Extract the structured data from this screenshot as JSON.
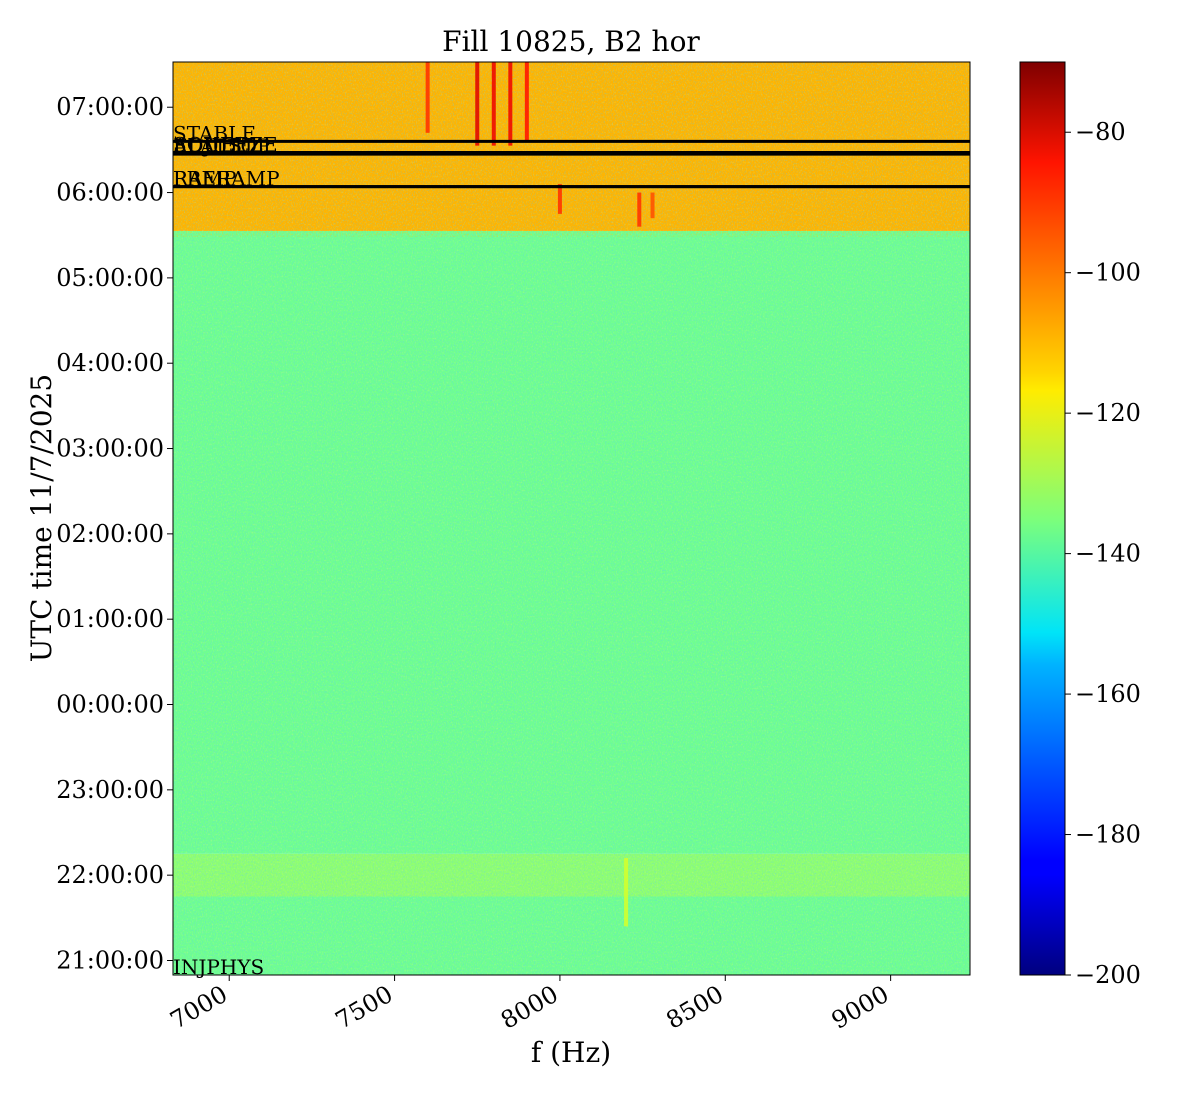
{
  "chart_data": {
    "type": "heatmap",
    "title": "Fill 10825, B2 hor",
    "xlabel": "f (Hz)",
    "ylabel": "UTC time 11/7/2025",
    "xlim": [
      6830,
      9240
    ],
    "x_ticks": [
      7000,
      7500,
      8000,
      8500,
      9000
    ],
    "y_axis": {
      "range_hours": [
        20.83,
        31.53
      ],
      "ticks": [
        {
          "hour": 21,
          "label": "21:00:00"
        },
        {
          "hour": 22,
          "label": "22:00:00"
        },
        {
          "hour": 23,
          "label": "23:00:00"
        },
        {
          "hour": 24,
          "label": "00:00:00"
        },
        {
          "hour": 25,
          "label": "01:00:00"
        },
        {
          "hour": 26,
          "label": "02:00:00"
        },
        {
          "hour": 27,
          "label": "03:00:00"
        },
        {
          "hour": 28,
          "label": "04:00:00"
        },
        {
          "hour": 29,
          "label": "05:00:00"
        },
        {
          "hour": 30,
          "label": "06:00:00"
        },
        {
          "hour": 31,
          "label": "07:00:00"
        }
      ]
    },
    "colorbar": {
      "colormap": "jet",
      "range": [
        -200,
        -70
      ],
      "ticks": [
        -200,
        -180,
        -160,
        -140,
        -120,
        -100,
        -80
      ],
      "tick_labels": [
        "−200",
        "−180",
        "−160",
        "−140",
        "−120",
        "−100",
        "−80"
      ]
    },
    "background_levels": [
      {
        "from_hour": 20.83,
        "to_hour": 21.75,
        "level": -137
      },
      {
        "from_hour": 21.75,
        "to_hour": 22.25,
        "level": -133
      },
      {
        "from_hour": 22.25,
        "to_hour": 29.55,
        "level": -137
      },
      {
        "from_hour": 29.55,
        "to_hour": 31.53,
        "level": -109
      }
    ],
    "events": [
      {
        "label": "INJPHYS",
        "hour": 20.83,
        "line": false
      },
      {
        "label": "PRERAMP",
        "hour": 30.07,
        "line": true
      },
      {
        "label": "RAMP",
        "hour": 30.07,
        "line": true
      },
      {
        "label": "FLATTOP",
        "hour": 30.45,
        "line": true
      },
      {
        "label": "ADJUST",
        "hour": 30.46,
        "line": true
      },
      {
        "label": "SQUEEZE",
        "hour": 30.47,
        "line": true
      },
      {
        "label": "STABLE",
        "hour": 30.6,
        "line": true
      }
    ],
    "spectral_lines": [
      {
        "f": 7750,
        "from_hour": 30.55,
        "to_hour": 31.53,
        "level": -82
      },
      {
        "f": 7800,
        "from_hour": 30.55,
        "to_hour": 31.53,
        "level": -84
      },
      {
        "f": 7850,
        "from_hour": 30.55,
        "to_hour": 31.53,
        "level": -84
      },
      {
        "f": 7900,
        "from_hour": 30.6,
        "to_hour": 31.53,
        "level": -88
      },
      {
        "f": 7600,
        "from_hour": 30.7,
        "to_hour": 31.53,
        "level": -92
      },
      {
        "f": 8000,
        "from_hour": 29.75,
        "to_hour": 30.1,
        "level": -92
      },
      {
        "f": 8240,
        "from_hour": 29.6,
        "to_hour": 30.0,
        "level": -92
      },
      {
        "f": 8280,
        "from_hour": 29.7,
        "to_hour": 30.0,
        "level": -96
      },
      {
        "f": 8200,
        "from_hour": 21.4,
        "to_hour": 22.2,
        "level": -124
      }
    ]
  }
}
